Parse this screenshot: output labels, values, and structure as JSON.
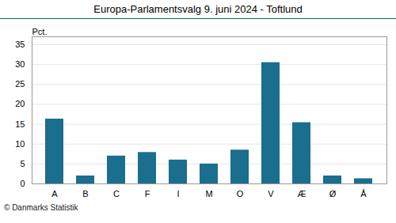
{
  "chart_data": {
    "type": "bar",
    "title": "Europa-Parlamentsvalg 9. juni 2024 - Toftlund",
    "categories": [
      "A",
      "B",
      "C",
      "F",
      "I",
      "M",
      "O",
      "V",
      "Æ",
      "Ø",
      "Å"
    ],
    "values": [
      16.3,
      2.0,
      7.0,
      7.9,
      6.0,
      5.0,
      8.5,
      30.5,
      15.4,
      2.0,
      1.3
    ],
    "color": "#1a6e8e",
    "ylabel": "Pct.",
    "ylim": [
      0,
      37
    ],
    "yticks": [
      0,
      5,
      10,
      15,
      20,
      25,
      30,
      35
    ],
    "grid": true,
    "caption": "© Danmarks Statistik"
  }
}
